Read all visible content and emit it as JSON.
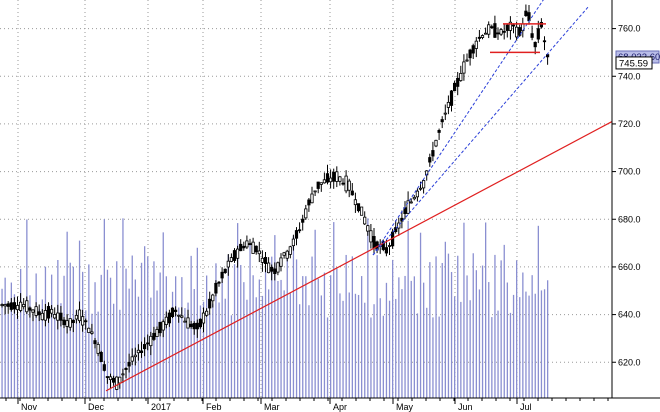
{
  "chart_data": {
    "type": "candlestick",
    "grid": true,
    "y_axis_side": "right",
    "ylim": [
      605,
      772
    ],
    "y_ticks": [
      620.0,
      640.0,
      660.0,
      680.0,
      700.0,
      720.0,
      740.0,
      760.0
    ],
    "y_tick_labels": [
      "620.0",
      "640.0",
      "660.0",
      "680.0",
      "700.0",
      "720.0",
      "740.0",
      "760.0"
    ],
    "x_tick_labels": [
      "Nov",
      "Dec",
      "2017",
      "Feb",
      "Mar",
      "Apr",
      "May",
      "Jun",
      "Jul"
    ],
    "last_price": 745.59,
    "last_price_label": "745.59",
    "volume_label": "68,032.60",
    "colors": {
      "grid": "#9a9a9a",
      "candle": "#000000",
      "volume": "#8a8fd1",
      "trendline": "#e02020",
      "channel": "#2a3fd8",
      "bracket": "#e02020",
      "volume_box": "#b9bde8",
      "price_box": "#ffffff"
    },
    "trendlines": [
      {
        "color": "red",
        "style": "solid",
        "from": [
          "Dec",
          608
        ],
        "to": [
          "Jul",
          720
        ]
      },
      {
        "color": "blue",
        "style": "dashed",
        "from": [
          "Apr",
          665
        ],
        "to": [
          "Jul",
          775
        ]
      },
      {
        "color": "blue",
        "style": "dashed",
        "from": [
          "Apr",
          665
        ],
        "to": [
          "Jul",
          769
        ]
      }
    ],
    "horizontal_marks": [
      {
        "color": "red",
        "level": 762
      },
      {
        "color": "red",
        "level": 750
      }
    ],
    "price_path": [
      [
        "Nov",
        644
      ],
      [
        "Nov",
        642
      ],
      [
        "Nov",
        640
      ],
      [
        "Nov",
        641
      ],
      [
        "Nov",
        638
      ],
      [
        "Nov",
        636
      ],
      [
        "Nov",
        640
      ],
      [
        "Dec",
        634
      ],
      [
        "Dec",
        626
      ],
      [
        "Dec",
        614
      ],
      [
        "Dec",
        611
      ],
      [
        "Dec",
        617
      ],
      [
        "Dec",
        622
      ],
      [
        "Dec",
        626
      ],
      [
        "2017",
        631
      ],
      [
        "2017",
        636
      ],
      [
        "2017",
        642
      ],
      [
        "2017",
        637
      ],
      [
        "2017",
        634
      ],
      [
        "Feb",
        642
      ],
      [
        "Feb",
        652
      ],
      [
        "Feb",
        660
      ],
      [
        "Feb",
        666
      ],
      [
        "Feb",
        670
      ],
      [
        "Feb",
        668
      ],
      [
        "Mar",
        662
      ],
      [
        "Mar",
        658
      ],
      [
        "Mar",
        664
      ],
      [
        "Mar",
        668
      ],
      [
        "Mar",
        676
      ],
      [
        "Mar",
        686
      ],
      [
        "Mar",
        694
      ],
      [
        "Mar",
        696
      ],
      [
        "Apr",
        698
      ],
      [
        "Apr",
        694
      ],
      [
        "Apr",
        683
      ],
      [
        "Apr",
        670
      ],
      [
        "Apr",
        667
      ],
      [
        "May",
        676
      ],
      [
        "May",
        684
      ],
      [
        "May",
        690
      ],
      [
        "May",
        696
      ],
      [
        "May",
        708
      ],
      [
        "May",
        720
      ],
      [
        "May",
        730
      ],
      [
        "Jun",
        740
      ],
      [
        "Jun",
        750
      ],
      [
        "Jun",
        757
      ],
      [
        "Jun",
        760
      ],
      [
        "Jun",
        758
      ],
      [
        "Jun",
        761
      ],
      [
        "Jul",
        758
      ],
      [
        "Jul",
        768
      ],
      [
        "Jul",
        752
      ],
      [
        "Jul",
        762
      ],
      [
        "Jul",
        745.59
      ]
    ],
    "volume_levels": [
      "low",
      "mid",
      "low",
      "mid",
      "low",
      "low",
      "mid",
      "low",
      "high",
      "low",
      "low",
      "mid",
      "low",
      "low",
      "mid",
      "low",
      "mid",
      "low",
      "mid",
      "low",
      "mid",
      "high",
      "mid",
      "mid",
      "low",
      "high",
      "mid",
      "low",
      "mid",
      "low",
      "mid",
      "low",
      "mid",
      "high",
      "mid",
      "mid",
      "low",
      "mid",
      "low",
      "high",
      "mid",
      "low",
      "mid",
      "mid",
      "low",
      "mid",
      "high",
      "mid",
      "low",
      "mid",
      "low",
      "mid",
      "high",
      "mid",
      "low"
    ]
  }
}
